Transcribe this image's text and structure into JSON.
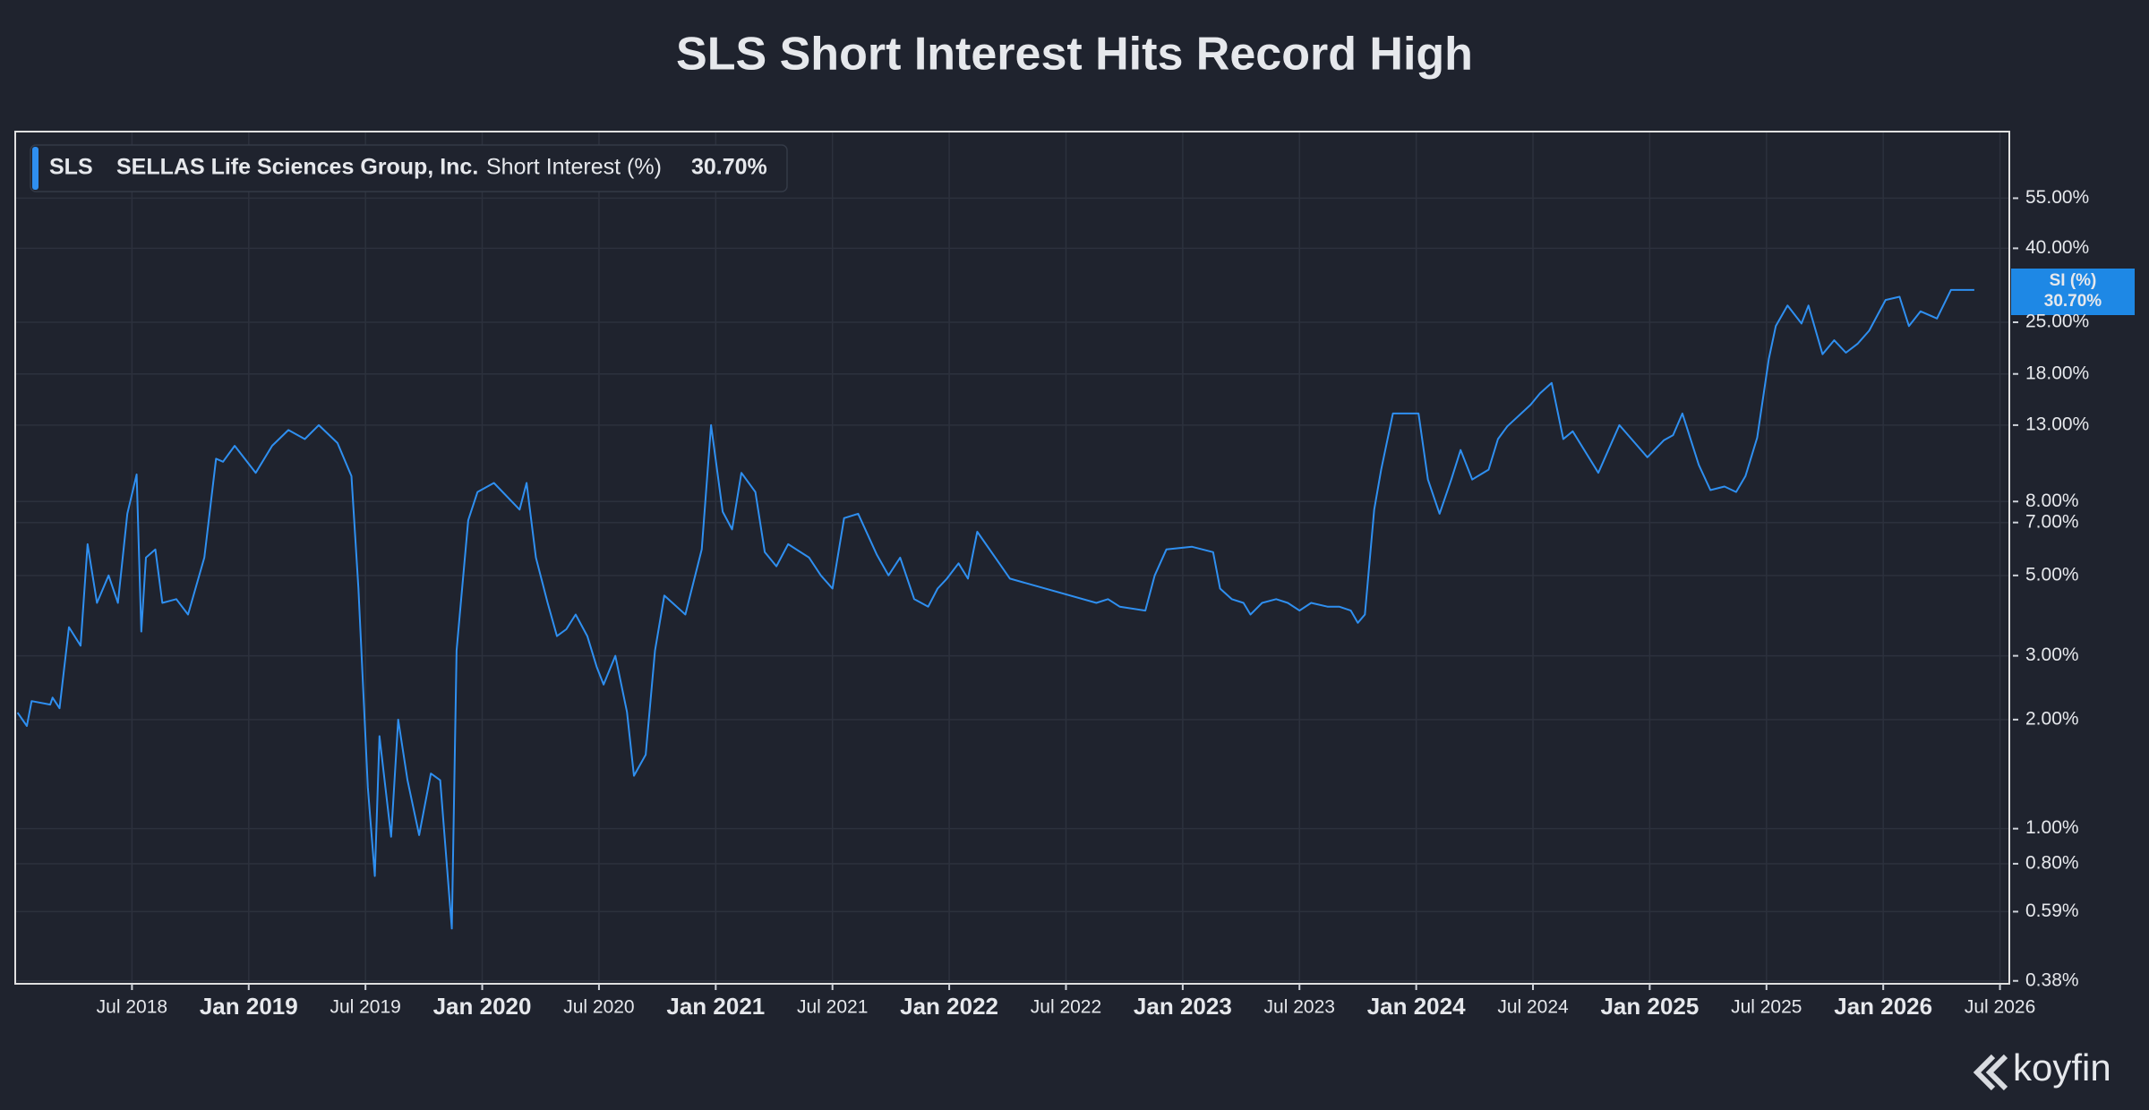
{
  "chart_data": {
    "type": "line",
    "title": "SLS Short Interest Hits Record High",
    "legend": {
      "ticker": "SLS",
      "company": "SELLAS Life Sciences Group, Inc.",
      "metric": "Short Interest (%)",
      "value_label": "30.70%"
    },
    "badge_label": "SI (%)",
    "brand": "koyfin",
    "log_y": true,
    "grid": true,
    "xlim": [
      2018.0,
      2026.54
    ],
    "ylim": [
      0.373,
      84
    ],
    "xticks": [
      {
        "value": 2018.5,
        "label": "Jul 2018"
      },
      {
        "value": 2019.0,
        "label": "Jan 2019"
      },
      {
        "value": 2019.5,
        "label": "Jul 2019"
      },
      {
        "value": 2020.0,
        "label": "Jan 2020"
      },
      {
        "value": 2020.5,
        "label": "Jul 2020"
      },
      {
        "value": 2021.0,
        "label": "Jan 2021"
      },
      {
        "value": 2021.5,
        "label": "Jul 2021"
      },
      {
        "value": 2022.0,
        "label": "Jan 2022"
      },
      {
        "value": 2022.5,
        "label": "Jul 2022"
      },
      {
        "value": 2023.0,
        "label": "Jan 2023"
      },
      {
        "value": 2023.5,
        "label": "Jul 2023"
      },
      {
        "value": 2024.0,
        "label": "Jan 2024"
      },
      {
        "value": 2024.5,
        "label": "Jul 2024"
      },
      {
        "value": 2025.0,
        "label": "Jan 2025"
      },
      {
        "value": 2025.5,
        "label": "Jul 2025"
      },
      {
        "value": 2026.0,
        "label": "Jan 2026"
      },
      {
        "value": 2026.5,
        "label": "Jul 2026"
      }
    ],
    "yticks": [
      {
        "value": 55,
        "label": "55.00%"
      },
      {
        "value": 40,
        "label": "40.00%"
      },
      {
        "value": 25,
        "label": "25.00%"
      },
      {
        "value": 18,
        "label": "18.00%"
      },
      {
        "value": 13,
        "label": "13.00%"
      },
      {
        "value": 8,
        "label": "8.00%"
      },
      {
        "value": 7,
        "label": "7.00%"
      },
      {
        "value": 5,
        "label": "5.00%"
      },
      {
        "value": 3,
        "label": "3.00%"
      },
      {
        "value": 2,
        "label": "2.00%"
      },
      {
        "value": 1,
        "label": "1.00%"
      },
      {
        "value": 0.8,
        "label": "0.80%"
      },
      {
        "value": 0.59,
        "label": "0.59%"
      },
      {
        "value": 0.38,
        "label": "0.38%"
      }
    ],
    "x": [
      2018.01,
      2018.05,
      2018.07,
      2018.15,
      2018.16,
      2018.19,
      2018.23,
      2018.28,
      2018.31,
      2018.35,
      2018.4,
      2018.44,
      2018.48,
      2018.52,
      2018.54,
      2018.56,
      2018.6,
      2018.63,
      2018.69,
      2018.74,
      2018.81,
      2018.86,
      2018.89,
      2018.94,
      2019.03,
      2019.1,
      2019.17,
      2019.24,
      2019.3,
      2019.38,
      2019.44,
      2019.47,
      2019.51,
      2019.54,
      2019.56,
      2019.61,
      2019.64,
      2019.68,
      2019.73,
      2019.78,
      2019.82,
      2019.87,
      2019.89,
      2019.94,
      2019.98,
      2020.05,
      2020.16,
      2020.19,
      2020.23,
      2020.28,
      2020.32,
      2020.36,
      2020.4,
      2020.45,
      2020.49,
      2020.52,
      2020.57,
      2020.62,
      2020.65,
      2020.7,
      2020.74,
      2020.78,
      2020.87,
      2020.94,
      2020.98,
      2021.03,
      2021.07,
      2021.11,
      2021.17,
      2021.21,
      2021.26,
      2021.31,
      2021.4,
      2021.45,
      2021.5,
      2021.55,
      2021.61,
      2021.69,
      2021.74,
      2021.79,
      2021.85,
      2021.91,
      2021.95,
      2021.99,
      2022.04,
      2022.08,
      2022.12,
      2022.26,
      2022.63,
      2022.68,
      2022.73,
      2022.84,
      2022.88,
      2022.93,
      2023.04,
      2023.13,
      2023.16,
      2023.21,
      2023.26,
      2023.29,
      2023.34,
      2023.4,
      2023.45,
      2023.5,
      2023.55,
      2023.62,
      2023.67,
      2023.72,
      2023.75,
      2023.78,
      2023.82,
      2023.85,
      2023.9,
      2024.01,
      2024.05,
      2024.1,
      2024.15,
      2024.19,
      2024.24,
      2024.31,
      2024.35,
      2024.39,
      2024.49,
      2024.53,
      2024.58,
      2024.63,
      2024.67,
      2024.78,
      2024.87,
      2024.99,
      2025.06,
      2025.1,
      2025.14,
      2025.21,
      2025.26,
      2025.32,
      2025.37,
      2025.41,
      2025.46,
      2025.51,
      2025.54,
      2025.59,
      2025.65,
      2025.68,
      2025.74,
      2025.79,
      2025.84,
      2025.89,
      2025.94,
      2026.01,
      2026.07,
      2026.11,
      2026.16,
      2026.23,
      2026.29,
      2026.39
    ],
    "series": [
      {
        "name": "Short Interest (%)",
        "color": "#2f8ff0",
        "values": [
          2.09,
          1.92,
          2.25,
          2.2,
          2.3,
          2.15,
          3.6,
          3.2,
          6.1,
          4.2,
          5.0,
          4.2,
          7.4,
          9.5,
          3.5,
          5.6,
          5.9,
          4.2,
          4.3,
          3.9,
          5.6,
          10.5,
          10.3,
          11.4,
          9.6,
          11.4,
          12.6,
          11.9,
          13.0,
          11.6,
          9.4,
          4.6,
          1.3,
          0.74,
          1.8,
          0.95,
          2.0,
          1.36,
          0.96,
          1.42,
          1.36,
          0.53,
          3.1,
          7.1,
          8.5,
          9.0,
          7.6,
          9.0,
          5.6,
          4.2,
          3.4,
          3.55,
          3.9,
          3.4,
          2.8,
          2.5,
          3.0,
          2.1,
          1.4,
          1.6,
          3.1,
          4.4,
          3.9,
          5.9,
          13.0,
          7.5,
          6.7,
          9.6,
          8.5,
          5.8,
          5.3,
          6.1,
          5.6,
          5.0,
          4.6,
          7.2,
          7.4,
          5.7,
          5.0,
          5.6,
          4.3,
          4.1,
          4.6,
          4.9,
          5.4,
          4.9,
          6.6,
          4.9,
          4.2,
          4.3,
          4.1,
          4.0,
          5.0,
          5.9,
          6.0,
          5.8,
          4.6,
          4.3,
          4.2,
          3.9,
          4.2,
          4.3,
          4.2,
          4.0,
          4.2,
          4.1,
          4.1,
          4.0,
          3.7,
          3.9,
          7.6,
          9.8,
          14.0,
          14.0,
          9.2,
          7.4,
          9.2,
          11.1,
          9.2,
          9.8,
          11.9,
          12.9,
          14.8,
          15.9,
          17.0,
          11.9,
          12.5,
          9.6,
          13.0,
          10.6,
          11.8,
          12.2,
          14.0,
          10.1,
          8.6,
          8.8,
          8.5,
          9.4,
          12.0,
          19.8,
          24.4,
          27.8,
          24.8,
          27.8,
          20.4,
          22.3,
          20.6,
          21.8,
          23.7,
          28.8,
          29.4,
          24.4,
          26.8,
          25.6,
          30.7,
          30.7
        ]
      }
    ]
  }
}
